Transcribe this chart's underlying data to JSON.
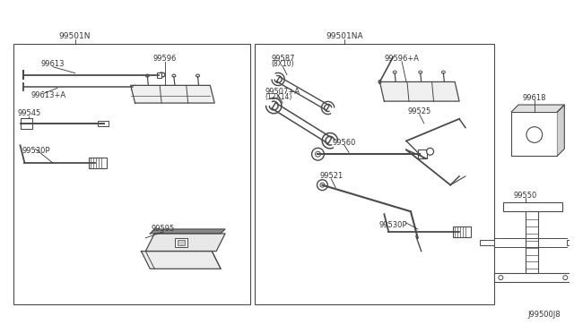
{
  "bg_color": "#ffffff",
  "lc": "#4a4a4a",
  "tc": "#333333",
  "box1_label": "99501N",
  "box2_label": "99501NA",
  "box3_label": "99618",
  "box4_label": "99550",
  "ref": "J99500J8",
  "figsize": [
    6.4,
    3.72
  ],
  "dpi": 100
}
